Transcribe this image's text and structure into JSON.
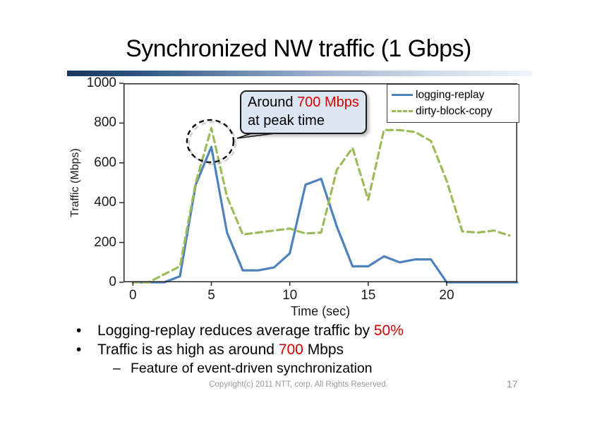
{
  "slide": {
    "title": "Synchronized NW traffic (1 Gbps)",
    "footer": "Copyright(c) 2011 NTT, corp. All Rights Reserved.",
    "page_number": "17"
  },
  "annotation": {
    "prefix": "Around ",
    "highlight": "700 Mbps",
    "line2": "at peak time"
  },
  "bullets": {
    "marker": "•",
    "sub_marker": "–",
    "b1": {
      "before": "Logging-replay reduces average traffic by ",
      "red": "50%",
      "after": ""
    },
    "b2": {
      "before": "Traffic is as high as around ",
      "red": "700",
      "after": " Mbps"
    },
    "sub1": "Feature of event-driven synchronization"
  },
  "colors": {
    "red": "#d40000",
    "blue": "#4f81bd",
    "green": "#9bbb59",
    "callout_fill": "#dce6f2",
    "divider_dark": "#17365d",
    "footer_gray": "#9a9a9a"
  },
  "chart_data": {
    "type": "line",
    "title": "",
    "xlabel": "Time (sec)",
    "ylabel": "Traffic (Mbps)",
    "xlim": [
      -0.6,
      24.5
    ],
    "ylim": [
      0,
      1000
    ],
    "xticks": [
      0,
      5,
      10,
      15,
      20
    ],
    "yticks": [
      0,
      200,
      400,
      600,
      800,
      1000
    ],
    "grid": false,
    "legend_position": "top-right-inside",
    "series": [
      {
        "name": "logging-replay",
        "color": "#4f81bd",
        "style": "solid",
        "x": [
          0,
          1,
          2,
          3,
          4,
          5,
          6,
          7,
          8,
          9,
          10,
          11,
          12,
          13,
          14,
          15,
          16,
          17,
          18,
          19,
          20,
          21,
          22,
          23,
          24,
          24.5
        ],
        "values": [
          0,
          0,
          0,
          30,
          490,
          680,
          250,
          60,
          60,
          75,
          145,
          490,
          520,
          280,
          80,
          80,
          130,
          100,
          115,
          115,
          0,
          0,
          0,
          0,
          0,
          0
        ]
      },
      {
        "name": "dirty-block-copy",
        "color": "#9bbb59",
        "style": "dashed",
        "x": [
          0,
          1,
          2,
          3,
          4,
          5,
          6,
          7,
          8,
          9,
          10,
          11,
          12,
          13,
          14,
          15,
          16,
          17,
          18,
          19,
          20,
          21,
          22,
          23,
          24
        ],
        "values": [
          0,
          0,
          40,
          80,
          500,
          775,
          430,
          240,
          250,
          260,
          270,
          245,
          250,
          565,
          675,
          415,
          765,
          765,
          755,
          710,
          510,
          255,
          250,
          260,
          235
        ]
      }
    ],
    "peak_annotation_value_mbps": 700,
    "peak_time_sec": 5
  }
}
